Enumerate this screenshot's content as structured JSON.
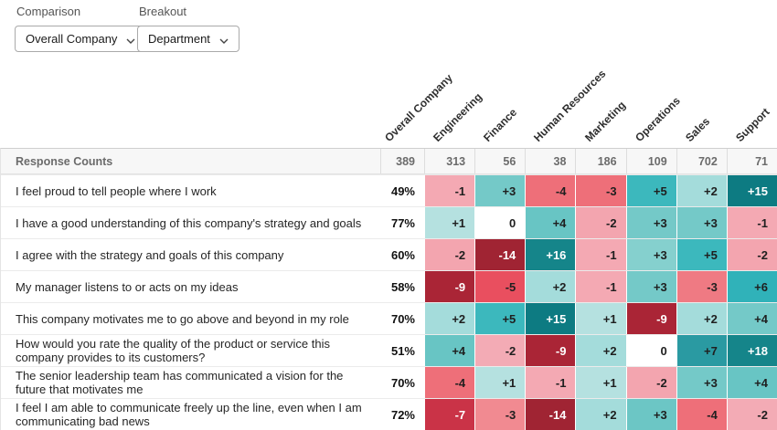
{
  "controls": {
    "comparison": {
      "label": "Comparison",
      "value": "Overall Company"
    },
    "breakout": {
      "label": "Breakout",
      "value": "Department"
    }
  },
  "table": {
    "corner_label": "Response Counts",
    "columns": [
      "Overall Company",
      "Engineering",
      "Finance",
      "Human Resources",
      "Marketing",
      "Operations",
      "Sales",
      "Support"
    ],
    "response_counts": [
      "389",
      "313",
      "56",
      "38",
      "186",
      "109",
      "702",
      "71"
    ],
    "rows": [
      {
        "question": "I feel proud to tell people where I work",
        "overall": "49%",
        "cells": [
          {
            "v": "-1",
            "bg": "#f4a9b3",
            "fg": "#1f1f1f"
          },
          {
            "v": "+3",
            "bg": "#74c9c8",
            "fg": "#1f1f1f"
          },
          {
            "v": "-4",
            "bg": "#ee6f79",
            "fg": "#1f1f1f"
          },
          {
            "v": "-3",
            "bg": "#ee6f79",
            "fg": "#1f1f1f"
          },
          {
            "v": "+5",
            "bg": "#3cb8bd",
            "fg": "#1f1f1f"
          },
          {
            "v": "+2",
            "bg": "#a4dcdb",
            "fg": "#1f1f1f"
          },
          {
            "v": "+15",
            "bg": "#0d7b82",
            "fg": "#ffffff"
          }
        ]
      },
      {
        "question": "I have a good understanding of this company's strategy and goals",
        "overall": "77%",
        "cells": [
          {
            "v": "+1",
            "bg": "#b5e1e0",
            "fg": "#1f1f1f"
          },
          {
            "v": "0",
            "bg": "#ffffff",
            "fg": "#1f1f1f"
          },
          {
            "v": "+4",
            "bg": "#68c5c4",
            "fg": "#1f1f1f"
          },
          {
            "v": "-2",
            "bg": "#f3a5af",
            "fg": "#1f1f1f"
          },
          {
            "v": "+3",
            "bg": "#74c9c8",
            "fg": "#1f1f1f"
          },
          {
            "v": "+3",
            "bg": "#74c9c8",
            "fg": "#1f1f1f"
          },
          {
            "v": "-1",
            "bg": "#f4a9b3",
            "fg": "#1f1f1f"
          }
        ]
      },
      {
        "question": "I agree with the strategy and goals of this company",
        "overall": "60%",
        "cells": [
          {
            "v": "-2",
            "bg": "#f3a5af",
            "fg": "#1f1f1f"
          },
          {
            "v": "-14",
            "bg": "#a02433",
            "fg": "#ffffff"
          },
          {
            "v": "+16",
            "bg": "#15858a",
            "fg": "#ffffff"
          },
          {
            "v": "-1",
            "bg": "#f4a9b3",
            "fg": "#1f1f1f"
          },
          {
            "v": "+3",
            "bg": "#85d0ce",
            "fg": "#1f1f1f"
          },
          {
            "v": "+5",
            "bg": "#3cb8bd",
            "fg": "#1f1f1f"
          },
          {
            "v": "-2",
            "bg": "#f3a5af",
            "fg": "#1f1f1f"
          }
        ]
      },
      {
        "question": "My manager listens to or acts on my ideas",
        "overall": "58%",
        "cells": [
          {
            "v": "-9",
            "bg": "#aa2536",
            "fg": "#ffffff"
          },
          {
            "v": "-5",
            "bg": "#e94f5f",
            "fg": "#1f1f1f"
          },
          {
            "v": "+2",
            "bg": "#a4dcdb",
            "fg": "#1f1f1f"
          },
          {
            "v": "-1",
            "bg": "#f4a9b3",
            "fg": "#1f1f1f"
          },
          {
            "v": "+3",
            "bg": "#74c9c8",
            "fg": "#1f1f1f"
          },
          {
            "v": "-3",
            "bg": "#ef7a83",
            "fg": "#1f1f1f"
          },
          {
            "v": "+6",
            "bg": "#30b2b9",
            "fg": "#1f1f1f"
          }
        ]
      },
      {
        "question": "This company motivates me to go above and beyond in my role",
        "overall": "70%",
        "cells": [
          {
            "v": "+2",
            "bg": "#a4dcdb",
            "fg": "#1f1f1f"
          },
          {
            "v": "+5",
            "bg": "#3cb8bd",
            "fg": "#1f1f1f"
          },
          {
            "v": "+15",
            "bg": "#0d7b82",
            "fg": "#ffffff"
          },
          {
            "v": "+1",
            "bg": "#b5e1e0",
            "fg": "#1f1f1f"
          },
          {
            "v": "-9",
            "bg": "#aa2536",
            "fg": "#ffffff"
          },
          {
            "v": "+2",
            "bg": "#a4dcdb",
            "fg": "#1f1f1f"
          },
          {
            "v": "+4",
            "bg": "#74c9c8",
            "fg": "#1f1f1f"
          }
        ]
      },
      {
        "question": "How would you rate the quality of the product or service this company provides to its customers?",
        "overall": "51%",
        "cells": [
          {
            "v": "+4",
            "bg": "#68c5c4",
            "fg": "#1f1f1f"
          },
          {
            "v": "-2",
            "bg": "#f3abb5",
            "fg": "#1f1f1f"
          },
          {
            "v": "-9",
            "bg": "#aa2536",
            "fg": "#ffffff"
          },
          {
            "v": "+2",
            "bg": "#a4dcdb",
            "fg": "#1f1f1f"
          },
          {
            "v": "0",
            "bg": "#ffffff",
            "fg": "#1f1f1f"
          },
          {
            "v": "+7",
            "bg": "#2a9aa2",
            "fg": "#1f1f1f"
          },
          {
            "v": "+18",
            "bg": "#15858a",
            "fg": "#ffffff"
          }
        ]
      },
      {
        "question": "The senior leadership team has communicated a vision for the future that motivates me",
        "overall": "70%",
        "cells": [
          {
            "v": "-4",
            "bg": "#ee6f79",
            "fg": "#1f1f1f"
          },
          {
            "v": "+1",
            "bg": "#b5e1e0",
            "fg": "#1f1f1f"
          },
          {
            "v": "-1",
            "bg": "#f4a9b3",
            "fg": "#1f1f1f"
          },
          {
            "v": "+1",
            "bg": "#b5e1e0",
            "fg": "#1f1f1f"
          },
          {
            "v": "-2",
            "bg": "#f3a5af",
            "fg": "#1f1f1f"
          },
          {
            "v": "+3",
            "bg": "#74c9c8",
            "fg": "#1f1f1f"
          },
          {
            "v": "+4",
            "bg": "#68c5c4",
            "fg": "#1f1f1f"
          }
        ]
      },
      {
        "question": "I feel I am able to communicate freely up the line, even when I am communicating bad news",
        "overall": "72%",
        "cells": [
          {
            "v": "-7",
            "bg": "#ca3347",
            "fg": "#ffffff"
          },
          {
            "v": "-3",
            "bg": "#f18a91",
            "fg": "#1f1f1f"
          },
          {
            "v": "-14",
            "bg": "#a02433",
            "fg": "#ffffff"
          },
          {
            "v": "+2",
            "bg": "#a4dcdb",
            "fg": "#1f1f1f"
          },
          {
            "v": "+3",
            "bg": "#6cc6c5",
            "fg": "#1f1f1f"
          },
          {
            "v": "-4",
            "bg": "#ee6f79",
            "fg": "#1f1f1f"
          },
          {
            "v": "-2",
            "bg": "#f3abb5",
            "fg": "#1f1f1f"
          }
        ]
      }
    ]
  },
  "colors": {
    "positive_dark": "#0d7b82",
    "positive_mid": "#3cb8bd",
    "positive_light": "#a4dcdb",
    "negative_dark": "#a02433",
    "negative_mid": "#ee6f79",
    "negative_light": "#f4a9b3",
    "neutral": "#ffffff"
  },
  "chart_data": {
    "type": "heatmap",
    "title": "",
    "col_labels": [
      "Engineering",
      "Finance",
      "Human Resources",
      "Marketing",
      "Operations",
      "Sales",
      "Support"
    ],
    "row_labels": [
      "I feel proud to tell people where I work",
      "I have a good understanding of this company's strategy and goals",
      "I agree with the strategy and goals of this company",
      "My manager listens to or acts on my ideas",
      "This company motivates me to go above and beyond in my role",
      "How would you rate the quality of the product or service this company provides to its customers?",
      "The senior leadership team has communicated a vision for the future that motivates me",
      "I feel I am able to communicate freely up the line, even when I am communicating bad news"
    ],
    "overall_company_scores": [
      "49%",
      "77%",
      "60%",
      "58%",
      "70%",
      "51%",
      "70%",
      "72%"
    ],
    "response_counts": {
      "Overall Company": 389,
      "Engineering": 313,
      "Finance": 56,
      "Human Resources": 38,
      "Marketing": 186,
      "Operations": 109,
      "Sales": 702,
      "Support": 71
    },
    "values": [
      [
        -1,
        3,
        -4,
        -3,
        5,
        2,
        15
      ],
      [
        1,
        0,
        4,
        -2,
        3,
        3,
        -1
      ],
      [
        -2,
        -14,
        16,
        -1,
        3,
        5,
        -2
      ],
      [
        -9,
        -5,
        2,
        -1,
        3,
        -3,
        6
      ],
      [
        2,
        5,
        15,
        1,
        -9,
        2,
        4
      ],
      [
        4,
        -2,
        -9,
        2,
        0,
        7,
        18
      ],
      [
        -4,
        1,
        -1,
        1,
        -2,
        3,
        4
      ],
      [
        -7,
        -3,
        -14,
        2,
        3,
        -4,
        -2
      ]
    ],
    "legend_position": "none",
    "grid": true
  }
}
